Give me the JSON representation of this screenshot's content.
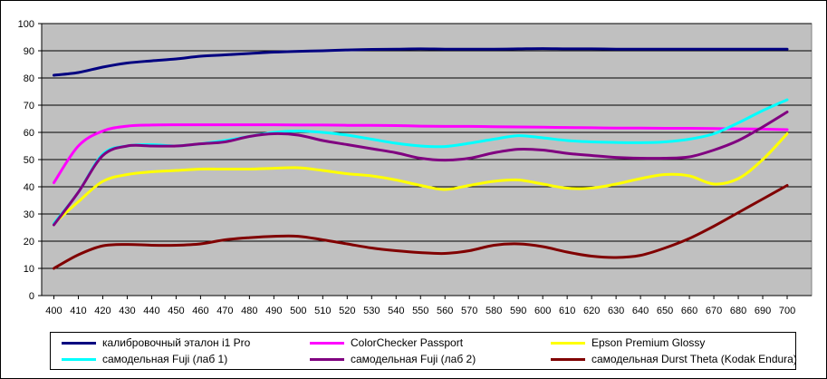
{
  "chart_data": {
    "type": "line",
    "title": "",
    "xlabel": "",
    "ylabel": "",
    "ylim": [
      0,
      100
    ],
    "yticks": [
      0,
      10,
      20,
      30,
      40,
      50,
      60,
      70,
      80,
      90,
      100
    ],
    "grid": "horizontal",
    "plot_background": "#c0c0c0",
    "legend_position": "bottom",
    "x": [
      400,
      410,
      420,
      430,
      440,
      450,
      460,
      470,
      480,
      490,
      500,
      510,
      520,
      530,
      540,
      550,
      560,
      570,
      580,
      590,
      600,
      610,
      620,
      630,
      640,
      650,
      660,
      670,
      680,
      690,
      700
    ],
    "series": [
      {
        "name": "калибровочный эталон i1 Pro",
        "color": "#000080",
        "values": [
          81,
          82,
          84,
          85.5,
          86.3,
          87,
          88,
          88.5,
          89,
          89.5,
          89.8,
          90,
          90.3,
          90.5,
          90.6,
          90.7,
          90.6,
          90.6,
          90.6,
          90.7,
          90.8,
          90.7,
          90.7,
          90.6,
          90.6,
          90.6,
          90.6,
          90.6,
          90.6,
          90.6,
          90.6
        ]
      },
      {
        "name": "ColorChecker Passport",
        "color": "#ff00ff",
        "values": [
          41.5,
          55,
          60.5,
          62.3,
          62.7,
          62.8,
          62.8,
          62.8,
          62.8,
          62.8,
          62.7,
          62.7,
          62.6,
          62.6,
          62.5,
          62.3,
          62.2,
          62.2,
          62.1,
          62.0,
          61.9,
          61.8,
          61.7,
          61.6,
          61.6,
          61.5,
          61.5,
          61.4,
          61.3,
          61.2,
          61.0
        ]
      },
      {
        "name": "Epson Premium Glossy",
        "color": "#ffff00",
        "values": [
          26.5,
          34.5,
          42,
          44.5,
          45.5,
          46,
          46.5,
          46.5,
          46.5,
          46.8,
          47,
          46,
          44.8,
          44,
          42.5,
          40.5,
          39,
          40.5,
          42,
          42.5,
          41,
          39.5,
          39.5,
          41,
          43,
          44.5,
          44,
          41,
          43,
          50,
          59.5
        ]
      },
      {
        "name": "самодельная Fuji (лаб 1)",
        "color": "#00ffff",
        "values": [
          26.5,
          38,
          52,
          55,
          55.5,
          55,
          55.8,
          57,
          58.5,
          60,
          60.5,
          60,
          59,
          57.5,
          56,
          55,
          54.8,
          56,
          57.5,
          58.8,
          58,
          57,
          56.5,
          56.3,
          56.2,
          56.5,
          57.5,
          59.5,
          63.5,
          68,
          72
        ]
      },
      {
        "name": "самодельная Fuji (лаб 2)",
        "color": "#800080",
        "values": [
          26,
          38,
          51.5,
          55,
          55,
          55,
          55.8,
          56.5,
          58.5,
          59.5,
          59,
          57,
          55.5,
          54,
          52.5,
          50.5,
          49.8,
          50.5,
          52.5,
          53.8,
          53.5,
          52.3,
          51.5,
          50.8,
          50.5,
          50.5,
          51,
          53.5,
          57,
          62,
          67.5
        ]
      },
      {
        "name": "самодельная Durst Theta (Kodak Endura)",
        "color": "#800000",
        "values": [
          10,
          15,
          18.3,
          18.8,
          18.5,
          18.5,
          19,
          20.5,
          21.3,
          21.8,
          21.8,
          20.5,
          19,
          17.5,
          16.5,
          15.8,
          15.5,
          16.5,
          18.5,
          19,
          18,
          16,
          14.5,
          14,
          14.8,
          17.5,
          21,
          25.5,
          30.5,
          35.5,
          40.5
        ]
      }
    ]
  }
}
